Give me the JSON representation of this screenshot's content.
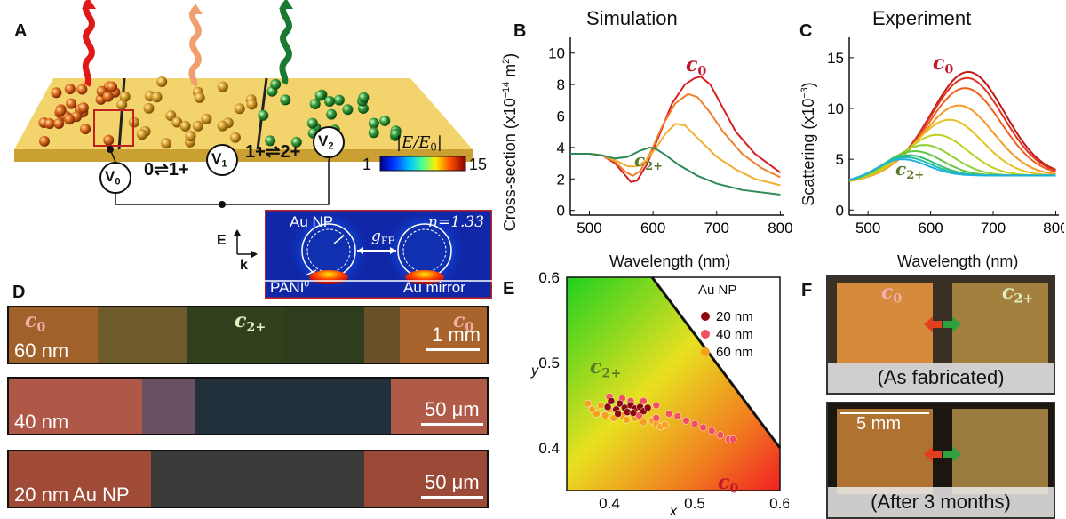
{
  "panels": {
    "a": "A",
    "b": "B",
    "c": "C",
    "d": "D",
    "e": "E",
    "f": "F"
  },
  "panel_a": {
    "states": [
      "0⇌1+",
      "1+⇌2+"
    ],
    "voltages": [
      "V",
      "V",
      "V"
    ],
    "voltage_subs": [
      "0",
      "1",
      "2"
    ],
    "colorbar_label": "|E/E",
    "colorbar_label_sub": "0",
    "colorbar_min": "1",
    "colorbar_max": "15",
    "inset": {
      "au_np": "Au NP",
      "n_label": "n=1.33",
      "gap": "g",
      "gap_sub": "FF",
      "pani": "PANI",
      "pani_sup": "0",
      "mirror": "Au mirror",
      "e": "E",
      "k": "k"
    }
  },
  "panel_b": {
    "title": "Simulation",
    "ylabel": "Cross-section (x10",
    "ylabel_exp": "−14",
    "ylabel_unit": " m",
    "ylabel_unit_sup": "2",
    "xlabel": "Wavelength (nm)",
    "c0": "c",
    "c0_sub": "0",
    "c2": "c",
    "c2_sub": "2+"
  },
  "panel_c": {
    "title": "Experiment",
    "ylabel": "Scattering (x10",
    "ylabel_exp": "−3",
    "xlabel": "Wavelength (nm)",
    "c0": "c",
    "c0_sub": "0",
    "c2": "c",
    "c2_sub": "2+"
  },
  "panel_d": {
    "rows": [
      {
        "label": "60 nm",
        "scale": "1 mm"
      },
      {
        "label": "40 nm",
        "scale": "50 μm"
      },
      {
        "label": "20 nm Au NP",
        "scale": "50 μm"
      }
    ],
    "c0": "c",
    "c0_sub": "0",
    "c2": "c",
    "c2_sub": "2+"
  },
  "panel_e": {
    "legend_title": "Au NP",
    "xlabel": "x",
    "ylabel": "y",
    "c0": "c",
    "c0_sub": "0",
    "c2": "c",
    "c2_sub": "2+"
  },
  "panel_f": {
    "caption_top": "(As fabricated)",
    "caption_bottom": "(After 3 months)",
    "scale": "5 mm",
    "c0": "c",
    "c0_sub": "0",
    "c2": "c",
    "c2_sub": "2+"
  },
  "colors": {
    "c0_label": "#c0192a",
    "c2_label": "#5a7a2a",
    "gold_surface": "#f3d36b"
  },
  "chart_data": [
    {
      "type": "line",
      "title": "Simulation",
      "xlabel": "Wavelength (nm)",
      "ylabel": "Cross-section (x10−14 m2)",
      "xlim": [
        470,
        805
      ],
      "ylim": [
        -0.3,
        11
      ],
      "xticks": [
        500,
        600,
        700,
        800
      ],
      "yticks": [
        0,
        2,
        4,
        6,
        8,
        10
      ],
      "series": [
        {
          "color": "#d81e1e",
          "x": [
            470,
            500,
            520,
            540,
            555,
            565,
            575,
            590,
            610,
            630,
            650,
            665,
            675,
            690,
            710,
            730,
            760,
            800
          ],
          "y": [
            3.6,
            3.6,
            3.5,
            3.0,
            2.3,
            1.8,
            1.9,
            2.9,
            4.8,
            6.8,
            8.0,
            8.4,
            8.5,
            8.0,
            6.5,
            5.0,
            3.6,
            2.4
          ]
        },
        {
          "color": "#f08030",
          "x": [
            470,
            500,
            520,
            540,
            555,
            568,
            580,
            595,
            615,
            635,
            655,
            670,
            690,
            710,
            740,
            770,
            800
          ],
          "y": [
            3.6,
            3.6,
            3.5,
            3.1,
            2.5,
            2.2,
            2.5,
            3.6,
            5.4,
            6.8,
            7.4,
            7.2,
            6.2,
            5.0,
            3.6,
            2.7,
            2.1
          ]
        },
        {
          "color": "#f2b030",
          "x": [
            470,
            500,
            520,
            540,
            560,
            575,
            590,
            605,
            620,
            635,
            650,
            670,
            700,
            730,
            760,
            800
          ],
          "y": [
            3.6,
            3.6,
            3.5,
            3.2,
            2.8,
            2.8,
            3.2,
            4.0,
            4.9,
            5.5,
            5.4,
            4.6,
            3.4,
            2.6,
            2.0,
            1.6
          ]
        },
        {
          "color": "#2e8b57",
          "x": [
            470,
            500,
            520,
            540,
            560,
            580,
            595,
            605,
            620,
            640,
            670,
            700,
            740,
            800
          ],
          "y": [
            3.6,
            3.6,
            3.5,
            3.3,
            3.4,
            3.8,
            4.0,
            3.9,
            3.5,
            2.9,
            2.2,
            1.7,
            1.3,
            1.0
          ]
        }
      ]
    },
    {
      "type": "line",
      "title": "Experiment",
      "xlabel": "Wavelength (nm)",
      "ylabel": "Scattering (x10−3)",
      "xlim": [
        470,
        805
      ],
      "ylim": [
        -0.5,
        17
      ],
      "xticks": [
        500,
        600,
        700,
        800
      ],
      "yticks": [
        0,
        5,
        10,
        15
      ],
      "series": [
        {
          "color": "#c01818",
          "peak_x": 660,
          "peak_y": 13.6
        },
        {
          "color": "#e03520",
          "peak_x": 658,
          "peak_y": 13.0
        },
        {
          "color": "#f06020",
          "peak_x": 655,
          "peak_y": 12.0
        },
        {
          "color": "#f59a20",
          "peak_x": 645,
          "peak_y": 10.3
        },
        {
          "color": "#e8c020",
          "peak_x": 630,
          "peak_y": 8.9
        },
        {
          "color": "#c0d020",
          "peak_x": 610,
          "peak_y": 7.4
        },
        {
          "color": "#90d030",
          "peak_x": 590,
          "peak_y": 6.4
        },
        {
          "color": "#60c840",
          "peak_x": 575,
          "peak_y": 5.8
        },
        {
          "color": "#30c070",
          "peak_x": 565,
          "peak_y": 5.4
        },
        {
          "color": "#20c0b0",
          "peak_x": 560,
          "peak_y": 5.2
        },
        {
          "color": "#20b0e0",
          "peak_x": 555,
          "peak_y": 5.0
        }
      ]
    },
    {
      "type": "scatter",
      "xlabel": "x",
      "ylabel": "y",
      "xlim": [
        0.35,
        0.6
      ],
      "ylim": [
        0.35,
        0.6
      ],
      "xticks": [
        0.4,
        0.5,
        0.6
      ],
      "yticks": [
        0.4,
        0.5,
        0.6
      ],
      "series": [
        {
          "name": "20 nm",
          "color": "#8b0a10",
          "points": [
            [
              0.398,
              0.448
            ],
            [
              0.402,
              0.455
            ],
            [
              0.408,
              0.445
            ],
            [
              0.412,
              0.452
            ],
            [
              0.418,
              0.447
            ],
            [
              0.421,
              0.442
            ],
            [
              0.425,
              0.45
            ],
            [
              0.43,
              0.446
            ],
            [
              0.436,
              0.448
            ],
            [
              0.44,
              0.443
            ],
            [
              0.445,
              0.447
            ],
            [
              0.41,
              0.44
            ],
            [
              0.428,
              0.441
            ]
          ]
        },
        {
          "name": "40 nm",
          "color": "#f05060",
          "points": [
            [
              0.4,
              0.46
            ],
            [
              0.415,
              0.458
            ],
            [
              0.425,
              0.455
            ],
            [
              0.44,
              0.455
            ],
            [
              0.455,
              0.45
            ],
            [
              0.47,
              0.44
            ],
            [
              0.48,
              0.437
            ],
            [
              0.49,
              0.432
            ],
            [
              0.5,
              0.428
            ],
            [
              0.51,
              0.424
            ],
            [
              0.52,
              0.42
            ],
            [
              0.53,
              0.415
            ],
            [
              0.54,
              0.41
            ],
            [
              0.545,
              0.41
            ],
            [
              0.455,
              0.435
            ],
            [
              0.435,
              0.438
            ]
          ]
        },
        {
          "name": "60 nm",
          "color": "#f7a020",
          "points": [
            [
              0.375,
              0.452
            ],
            [
              0.38,
              0.445
            ],
            [
              0.385,
              0.44
            ],
            [
              0.39,
              0.45
            ],
            [
              0.395,
              0.438
            ],
            [
              0.4,
              0.445
            ],
            [
              0.405,
              0.435
            ],
            [
              0.415,
              0.438
            ],
            [
              0.42,
              0.433
            ],
            [
              0.43,
              0.435
            ],
            [
              0.44,
              0.43
            ],
            [
              0.45,
              0.432
            ],
            [
              0.455,
              0.428
            ],
            [
              0.46,
              0.425
            ],
            [
              0.465,
              0.427
            ]
          ]
        }
      ]
    }
  ]
}
